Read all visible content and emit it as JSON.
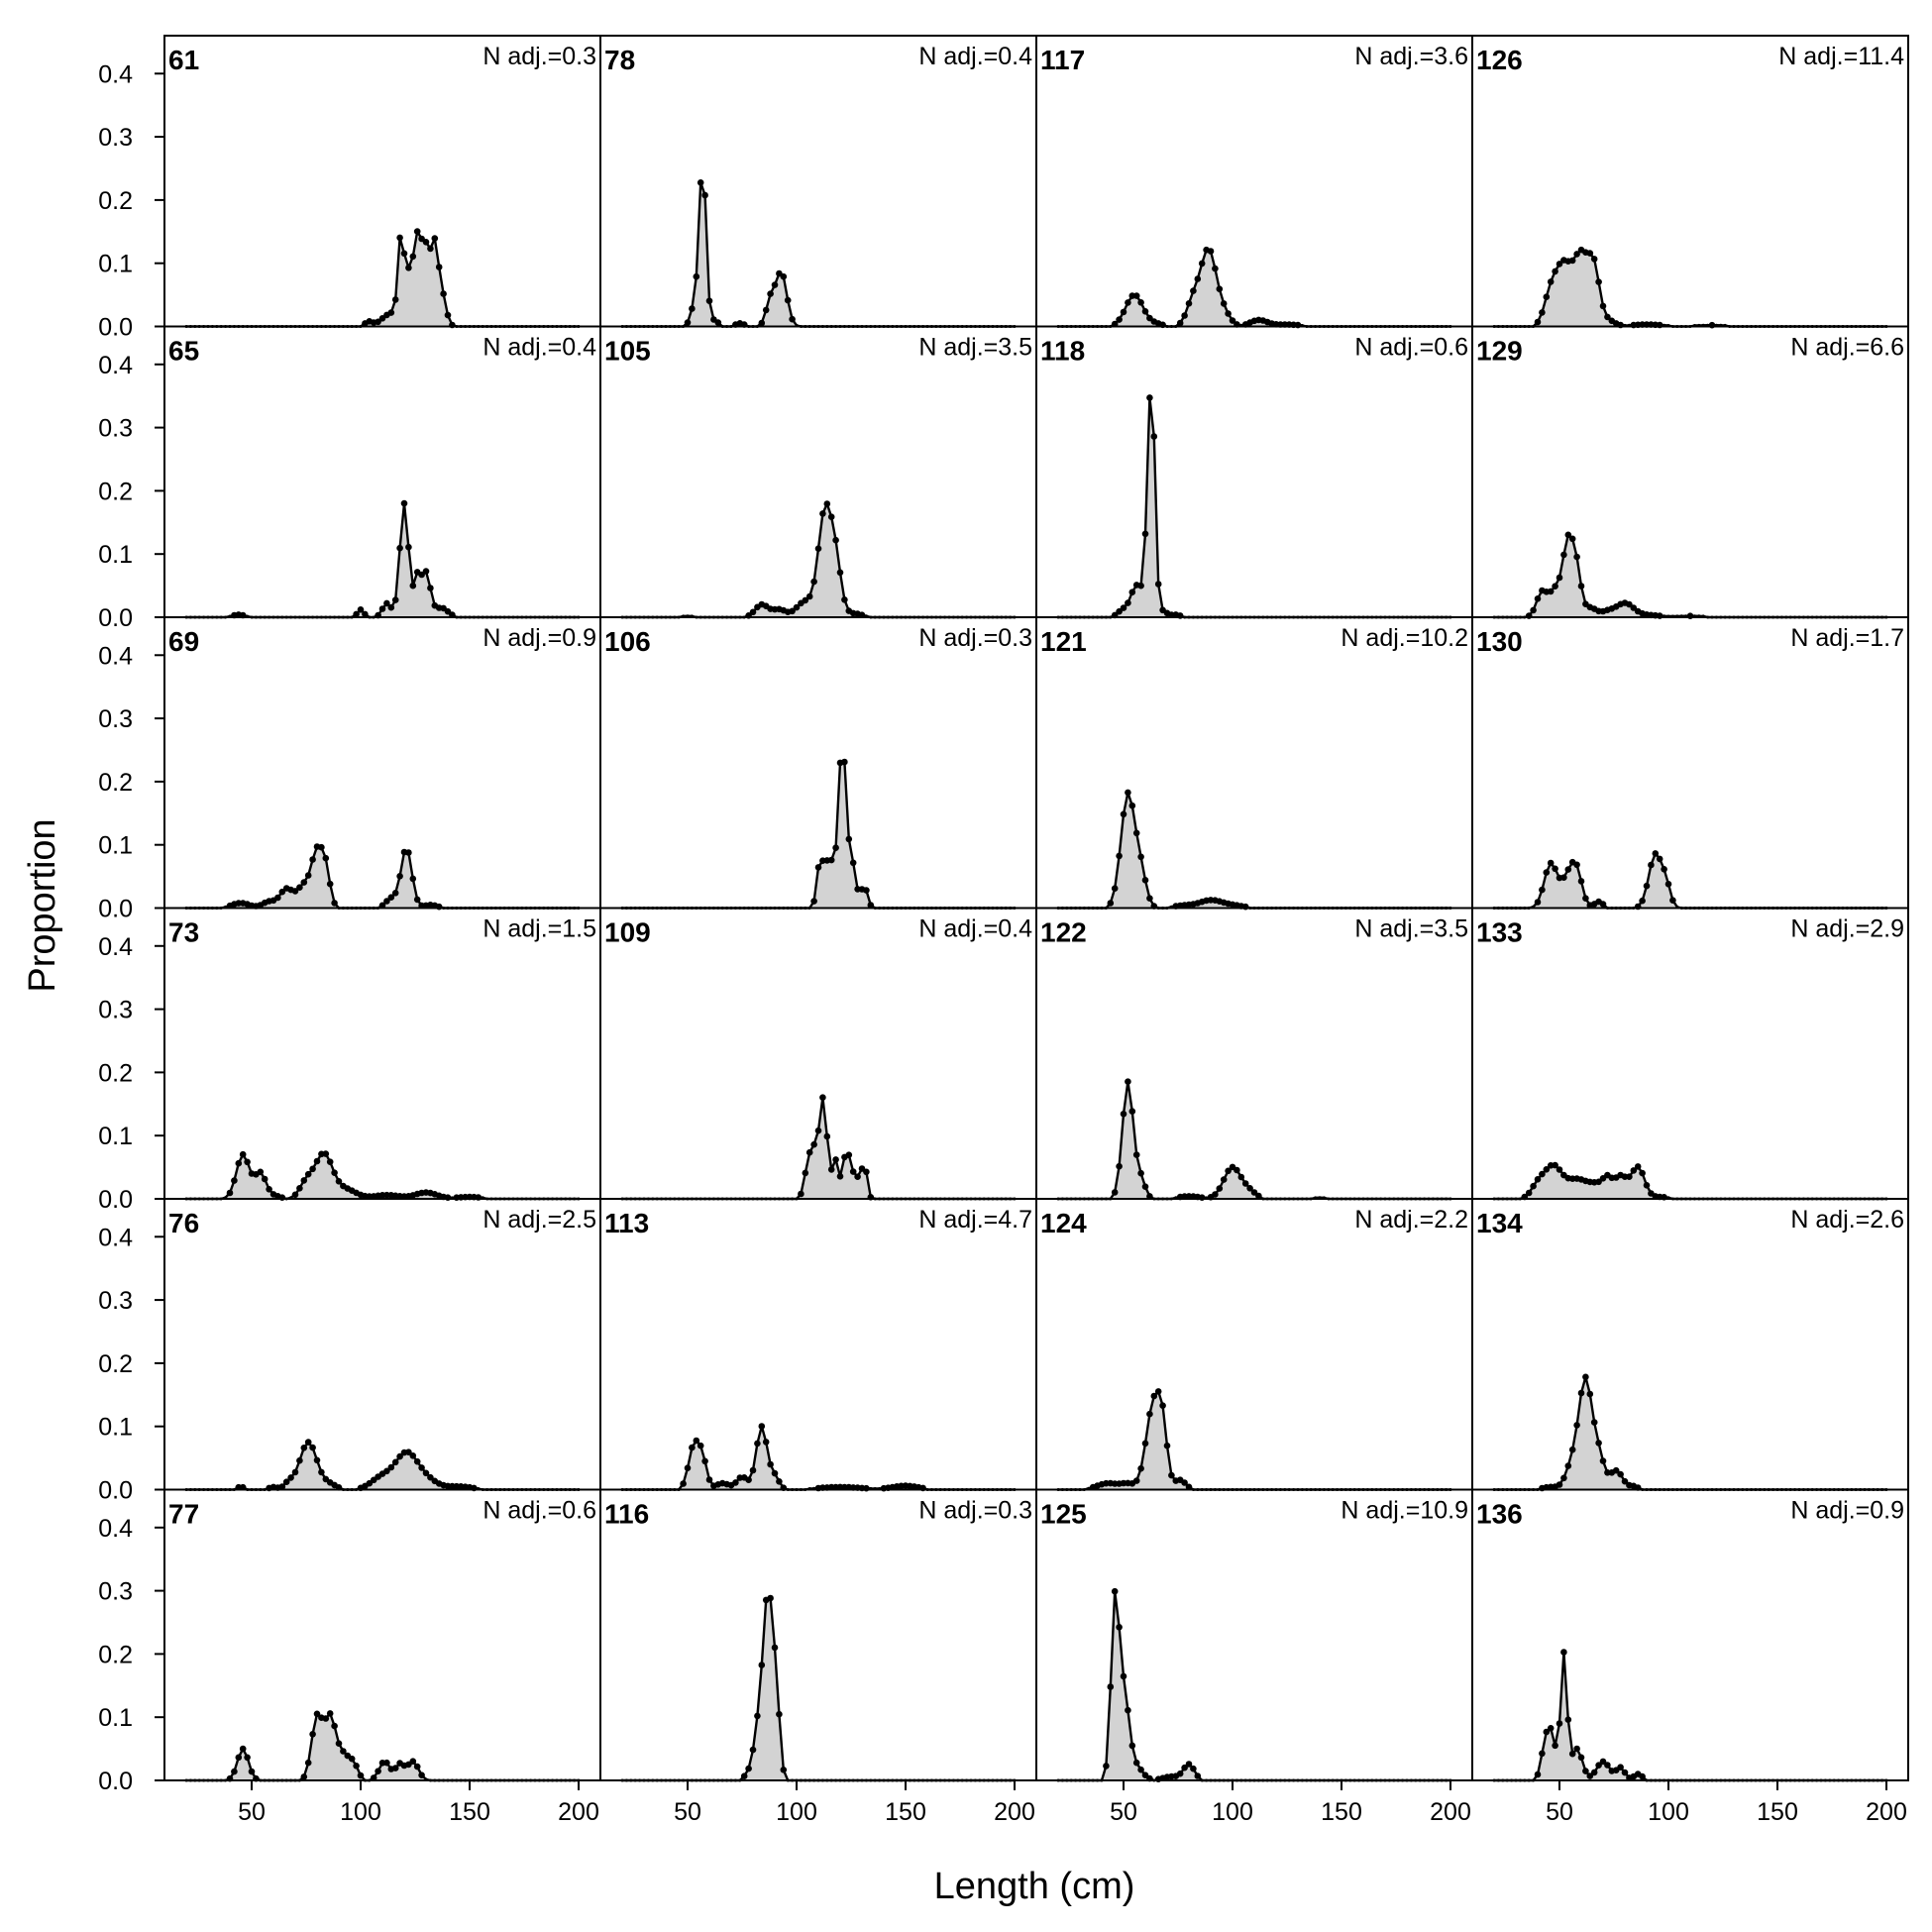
{
  "chart_data": {
    "type": "area",
    "xlabel": "Length (cm)",
    "ylabel": "Proportion",
    "xlim": [
      10,
      210
    ],
    "ylim": [
      0,
      0.46
    ],
    "x_ticks": [
      50,
      100,
      150,
      200
    ],
    "y_ticks": [
      0.0,
      0.1,
      0.2,
      0.3,
      0.4
    ],
    "y_tick_labels": [
      "0.0",
      "0.1",
      "0.2",
      "0.3",
      "0.4"
    ],
    "grid": false,
    "colors": {
      "fill": "#d3d3d3",
      "line": "#000000",
      "points": "#000000"
    },
    "length_bins": [
      20,
      200,
      2
    ],
    "columns": [
      [
        {
          "label": "61",
          "n_adj": "N adj.=0.3",
          "peaks": [
            [
              104,
              0.008,
              2
            ],
            [
              110,
              0.01,
              2
            ],
            [
              114,
              0.02,
              2
            ],
            [
              118,
              0.12,
              1.2
            ],
            [
              120,
              0.07,
              1.2
            ],
            [
              122,
              0.06,
              1.2
            ],
            [
              125,
              0.1,
              1.5
            ],
            [
              128,
              0.115,
              2
            ],
            [
              131,
              0.075,
              1.5
            ],
            [
              134,
              0.11,
              1.5
            ],
            [
              137,
              0.055,
              2
            ]
          ]
        },
        {
          "label": "65",
          "n_adj": "N adj.=0.4",
          "peaks": [
            [
              44,
              0.004,
              3
            ],
            [
              100,
              0.012,
              1.5
            ],
            [
              112,
              0.022,
              2
            ],
            [
              120,
              0.18,
              2
            ],
            [
              126,
              0.06,
              1.5
            ],
            [
              130,
              0.07,
              2
            ],
            [
              137,
              0.015,
              3
            ]
          ]
        },
        {
          "label": "69",
          "n_adj": "N adj.=0.9",
          "peaks": [
            [
              45,
              0.008,
              4
            ],
            [
              58,
              0.01,
              3
            ],
            [
              66,
              0.03,
              3
            ],
            [
              74,
              0.035,
              3
            ],
            [
              80,
              0.085,
              2.5
            ],
            [
              84,
              0.055,
              2
            ],
            [
              114,
              0.015,
              2.5
            ],
            [
              121,
              0.095,
              2.5
            ],
            [
              132,
              0.005,
              3
            ]
          ]
        },
        {
          "label": "73",
          "n_adj": "N adj.=1.5",
          "peaks": [
            [
              46,
              0.07,
              3
            ],
            [
              54,
              0.04,
              2.5
            ],
            [
              60,
              0.005,
              3
            ],
            [
              75,
              0.025,
              3
            ],
            [
              83,
              0.07,
              4
            ],
            [
              93,
              0.015,
              5
            ],
            [
              112,
              0.006,
              6
            ],
            [
              130,
              0.01,
              5
            ],
            [
              150,
              0.003,
              6
            ]
          ]
        },
        {
          "label": "76",
          "n_adj": "N adj.=2.5",
          "peaks": [
            [
              45,
              0.004,
              2
            ],
            [
              60,
              0.004,
              2
            ],
            [
              67,
              0.01,
              2
            ],
            [
              76,
              0.075,
              4
            ],
            [
              86,
              0.008,
              3
            ],
            [
              110,
              0.02,
              5
            ],
            [
              121,
              0.055,
              5
            ],
            [
              130,
              0.015,
              5
            ],
            [
              145,
              0.005,
              6
            ]
          ]
        },
        {
          "label": "77",
          "n_adj": "N adj.=0.6",
          "peaks": [
            [
              46,
              0.05,
              2.5
            ],
            [
              80,
              0.1,
              2.5
            ],
            [
              86,
              0.095,
              2.5
            ],
            [
              92,
              0.04,
              3
            ],
            [
              97,
              0.02,
              2
            ],
            [
              111,
              0.03,
              2.5
            ],
            [
              118,
              0.025,
              2
            ],
            [
              124,
              0.03,
              2.5
            ]
          ]
        }
      ],
      [
        {
          "label": "78",
          "n_adj": "N adj.=0.4",
          "peaks": [
            [
              54,
              0.045,
              2
            ],
            [
              57,
              0.25,
              1.5
            ],
            [
              62,
              0.01,
              2
            ],
            [
              74,
              0.005,
              2
            ],
            [
              88,
              0.04,
              2
            ],
            [
              93,
              0.085,
              2.5
            ]
          ]
        },
        {
          "label": "105",
          "n_adj": "N adj.=3.5",
          "peaks": [
            [
              50,
              0.002,
              4
            ],
            [
              84,
              0.02,
              3
            ],
            [
              92,
              0.012,
              3
            ],
            [
              104,
              0.025,
              4
            ],
            [
              113,
              0.165,
              3
            ],
            [
              118,
              0.08,
              2.5
            ],
            [
              126,
              0.006,
              4
            ]
          ]
        },
        {
          "label": "106",
          "n_adj": "N adj.=0.3",
          "peaks": [
            [
              111,
              0.08,
              1.5
            ],
            [
              115,
              0.08,
              1.5
            ],
            [
              121,
              0.26,
              2
            ],
            [
              126,
              0.06,
              1.5
            ],
            [
              131,
              0.035,
              1.5
            ]
          ]
        },
        {
          "label": "109",
          "n_adj": "N adj.=0.4",
          "peaks": [
            [
              104,
              0.03,
              1.2
            ],
            [
              107,
              0.08,
              1.5
            ],
            [
              112,
              0.16,
              2
            ],
            [
              118,
              0.06,
              1.5
            ],
            [
              123,
              0.08,
              1.5
            ],
            [
              127,
              0.04,
              1.5
            ],
            [
              131,
              0.06,
              1.2
            ]
          ]
        },
        {
          "label": "113",
          "n_adj": "N adj.=4.7",
          "peaks": [
            [
              53,
              0.07,
              2.5
            ],
            [
              57,
              0.04,
              2
            ],
            [
              66,
              0.01,
              3
            ],
            [
              75,
              0.02,
              2.5
            ],
            [
              84,
              0.1,
              2.5
            ],
            [
              90,
              0.02,
              2
            ],
            [
              120,
              0.004,
              10
            ],
            [
              150,
              0.006,
              6
            ]
          ]
        },
        {
          "label": "116",
          "n_adj": "N adj.=0.3",
          "peaks": [
            [
              78,
              0.01,
              2
            ],
            [
              82,
              0.06,
              2
            ],
            [
              87,
              0.3,
              2.5
            ],
            [
              91,
              0.08,
              1.5
            ]
          ]
        }
      ],
      [
        {
          "label": "117",
          "n_adj": "N adj.=3.6",
          "peaks": [
            [
              55,
              0.05,
              4
            ],
            [
              65,
              0.004,
              3
            ],
            [
              82,
              0.04,
              3
            ],
            [
              89,
              0.12,
              3.5
            ],
            [
              96,
              0.02,
              3
            ],
            [
              112,
              0.01,
              4
            ],
            [
              125,
              0.003,
              6
            ]
          ]
        },
        {
          "label": "118",
          "n_adj": "N adj.=0.6",
          "peaks": [
            [
              50,
              0.012,
              2.5
            ],
            [
              56,
              0.05,
              2.5
            ],
            [
              61,
              0.09,
              1.5
            ],
            [
              63,
              0.34,
              1.5
            ],
            [
              68,
              0.01,
              2
            ],
            [
              74,
              0.004,
              2
            ]
          ]
        },
        {
          "label": "121",
          "n_adj": "N adj.=10.2",
          "peaks": [
            [
              52,
              0.18,
              3.2
            ],
            [
              58,
              0.05,
              2.5
            ],
            [
              78,
              0.004,
              5
            ],
            [
              90,
              0.012,
              5
            ],
            [
              100,
              0.004,
              5
            ]
          ]
        },
        {
          "label": "122",
          "n_adj": "N adj.=3.5",
          "peaks": [
            [
              52,
              0.185,
              2.5
            ],
            [
              58,
              0.03,
              2
            ],
            [
              80,
              0.004,
              5
            ],
            [
              100,
              0.05,
              4
            ],
            [
              108,
              0.01,
              3
            ],
            [
              140,
              0.002,
              4
            ]
          ]
        },
        {
          "label": "124",
          "n_adj": "N adj.=2.2",
          "peaks": [
            [
              43,
              0.01,
              5
            ],
            [
              52,
              0.008,
              3
            ],
            [
              64,
              0.14,
              3.5
            ],
            [
              68,
              0.06,
              2
            ],
            [
              76,
              0.015,
              2.5
            ]
          ]
        },
        {
          "label": "125",
          "n_adj": "N adj.=10.9",
          "peaks": [
            [
              46,
              0.26,
              1.8
            ],
            [
              50,
              0.14,
              2.5
            ],
            [
              56,
              0.02,
              3
            ],
            [
              72,
              0.006,
              4
            ],
            [
              80,
              0.025,
              2.5
            ]
          ]
        }
      ],
      [
        {
          "label": "126",
          "n_adj": "N adj.=11.4",
          "peaks": [
            [
              46,
              0.05,
              3
            ],
            [
              52,
              0.09,
              3.5
            ],
            [
              60,
              0.11,
              3.5
            ],
            [
              66,
              0.08,
              2.5
            ],
            [
              72,
              0.01,
              3
            ],
            [
              90,
              0.003,
              8
            ],
            [
              120,
              0.002,
              10
            ]
          ]
        },
        {
          "label": "129",
          "n_adj": "N adj.=6.6",
          "peaks": [
            [
              42,
              0.04,
              2.5
            ],
            [
              48,
              0.04,
              2.5
            ],
            [
              54,
              0.12,
              2.5
            ],
            [
              58,
              0.06,
              2
            ],
            [
              64,
              0.015,
              3
            ],
            [
              72,
              0.008,
              3
            ],
            [
              80,
              0.022,
              4
            ],
            [
              90,
              0.003,
              5
            ],
            [
              110,
              0.002,
              10
            ]
          ]
        },
        {
          "label": "130",
          "n_adj": "N adj.=1.7",
          "peaks": [
            [
              46,
              0.07,
              3
            ],
            [
              54,
              0.045,
              3
            ],
            [
              58,
              0.05,
              2.5
            ],
            [
              68,
              0.01,
              2
            ],
            [
              94,
              0.085,
              3
            ],
            [
              99,
              0.03,
              2
            ]
          ]
        },
        {
          "label": "133",
          "n_adj": "N adj.=2.9",
          "peaks": [
            [
              40,
              0.02,
              3
            ],
            [
              47,
              0.05,
              4
            ],
            [
              58,
              0.03,
              5
            ],
            [
              68,
              0.02,
              4
            ],
            [
              72,
              0.02,
              2
            ],
            [
              78,
              0.035,
              3
            ],
            [
              86,
              0.05,
              3
            ],
            [
              96,
              0.003,
              4
            ]
          ]
        },
        {
          "label": "134",
          "n_adj": "N adj.=2.6",
          "peaks": [
            [
              46,
              0.004,
              4
            ],
            [
              56,
              0.04,
              3
            ],
            [
              62,
              0.17,
              3
            ],
            [
              68,
              0.05,
              2.5
            ],
            [
              76,
              0.03,
              3
            ],
            [
              84,
              0.005,
              2
            ]
          ]
        },
        {
          "label": "136",
          "n_adj": "N adj.=0.9",
          "peaks": [
            [
              44,
              0.07,
              2
            ],
            [
              47,
              0.05,
              1.5
            ],
            [
              52,
              0.2,
              1.5
            ],
            [
              58,
              0.05,
              2.5
            ],
            [
              70,
              0.03,
              3
            ],
            [
              78,
              0.02,
              2
            ],
            [
              86,
              0.01,
              2
            ]
          ]
        }
      ]
    ]
  }
}
